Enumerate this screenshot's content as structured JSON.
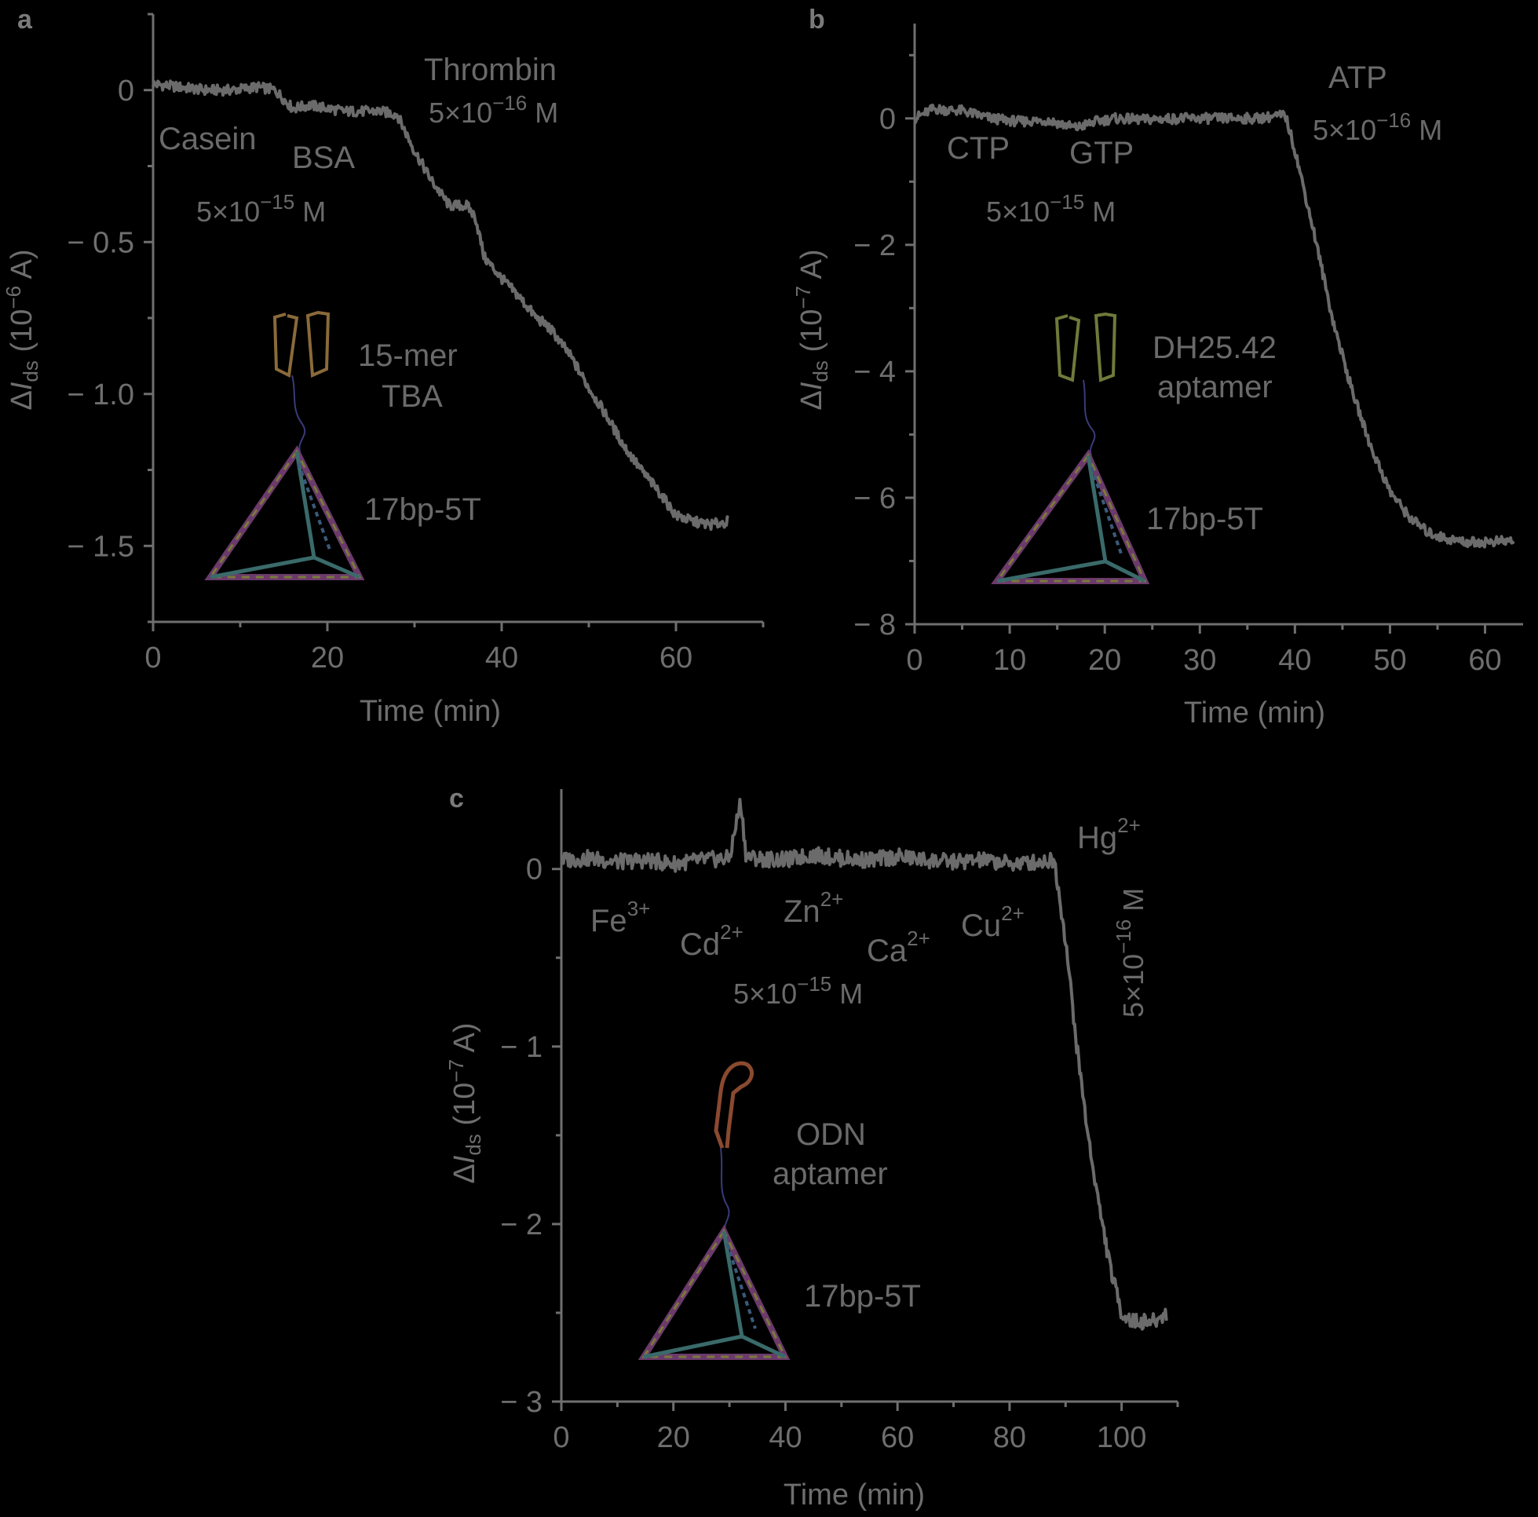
{
  "chart_data": [
    {
      "panel": "a",
      "type": "line",
      "xlabel": "Time (min)",
      "ylabel": "ΔIds (10−6 A)",
      "ylabel_parts": {
        "delta": "Δ",
        "italic": "I",
        "sub": "ds",
        "unit_pre": " (10",
        "unit_sup": "−6",
        "unit_post": " A)"
      },
      "xlim": [
        0,
        70
      ],
      "ylim": [
        -1.75,
        0.25
      ],
      "xticks": [
        0,
        20,
        40,
        60
      ],
      "xtick_labels": [
        "0",
        "20",
        "40",
        "60"
      ],
      "yticks": [
        0,
        -0.5,
        -1.0,
        -1.5
      ],
      "ytick_labels": [
        "0",
        "− 0.5",
        "− 1.0",
        "− 1.5"
      ],
      "series": [
        {
          "x": [
            0,
            3,
            6,
            9,
            12,
            14,
            16,
            18,
            20,
            22,
            24,
            26,
            28,
            30,
            32,
            34,
            36,
            37,
            38,
            40,
            42,
            44,
            45,
            46,
            48,
            50,
            52,
            54,
            56,
            58,
            60,
            62,
            64,
            66
          ],
          "y": [
            0.02,
            0.01,
            0.0,
            0.0,
            0.01,
            0.0,
            -0.06,
            -0.05,
            -0.06,
            -0.07,
            -0.07,
            -0.07,
            -0.08,
            -0.2,
            -0.3,
            -0.38,
            -0.38,
            -0.42,
            -0.55,
            -0.62,
            -0.68,
            -0.75,
            -0.77,
            -0.8,
            -0.88,
            -0.98,
            -1.07,
            -1.17,
            -1.25,
            -1.32,
            -1.4,
            -1.42,
            -1.43,
            -1.42
          ]
        }
      ],
      "annotations": [
        {
          "text": "Casein"
        },
        {
          "text": "BSA"
        },
        {
          "text": "Thrombin"
        },
        {
          "text": "5×10−16 M",
          "base": "5×10",
          "sup": "−16",
          "tail": " M"
        },
        {
          "text": "5×10−15 M",
          "base": "5×10",
          "sup": "−15",
          "tail": " M"
        },
        {
          "text": "15-mer"
        },
        {
          "text": "TBA"
        },
        {
          "text": "17bp-5T"
        }
      ]
    },
    {
      "panel": "b",
      "type": "line",
      "xlabel": "Time (min)",
      "ylabel": "ΔIds (10−7 A)",
      "ylabel_parts": {
        "delta": "Δ",
        "italic": "I",
        "sub": "ds",
        "unit_pre": " (10",
        "unit_sup": "−7",
        "unit_post": " A)"
      },
      "xlim": [
        0,
        64
      ],
      "ylim": [
        -8,
        1.5
      ],
      "xticks": [
        0,
        10,
        20,
        30,
        40,
        50,
        60
      ],
      "xtick_labels": [
        "0",
        "10",
        "20",
        "30",
        "40",
        "50",
        "60"
      ],
      "yticks": [
        0,
        -2,
        -4,
        -6,
        -8
      ],
      "ytick_labels": [
        "0",
        "− 2",
        "− 4",
        "− 6",
        "− 8"
      ],
      "series": [
        {
          "x": [
            0,
            2,
            5,
            8,
            11,
            14,
            17,
            19,
            21,
            24,
            28,
            32,
            36,
            39,
            40,
            42,
            44,
            46,
            48,
            50,
            52,
            54,
            56,
            58,
            60,
            63
          ],
          "y": [
            0.0,
            0.15,
            0.12,
            0.0,
            -0.05,
            -0.03,
            -0.15,
            -0.05,
            0.0,
            -0.02,
            0.0,
            0.0,
            0.0,
            0.05,
            -0.5,
            -1.8,
            -3.2,
            -4.3,
            -5.2,
            -5.9,
            -6.3,
            -6.55,
            -6.65,
            -6.7,
            -6.7,
            -6.68
          ]
        }
      ],
      "annotations": [
        {
          "text": "CTP"
        },
        {
          "text": "GTP"
        },
        {
          "text": "ATP"
        },
        {
          "text": "5×10−16 M",
          "base": "5×10",
          "sup": "−16",
          "tail": " M"
        },
        {
          "text": "5×10−15 M",
          "base": "5×10",
          "sup": "−15",
          "tail": " M"
        },
        {
          "text": "DH25.42"
        },
        {
          "text": "aptamer"
        },
        {
          "text": "17bp-5T"
        }
      ]
    },
    {
      "panel": "c",
      "type": "line",
      "xlabel": "Time (min)",
      "ylabel": "ΔIds (10−7 A)",
      "ylabel_parts": {
        "delta": "Δ",
        "italic": "I",
        "sub": "ds",
        "unit_pre": " (10",
        "unit_sup": "−7",
        "unit_post": " A)"
      },
      "xlim": [
        0,
        110
      ],
      "ylim": [
        -3,
        0.45
      ],
      "xticks": [
        0,
        20,
        40,
        60,
        80,
        100
      ],
      "xtick_labels": [
        "0",
        "20",
        "40",
        "60",
        "80",
        "100"
      ],
      "yticks": [
        0,
        -1,
        -2,
        -3
      ],
      "ytick_labels": [
        "0",
        "− 1",
        "− 2",
        "− 3"
      ],
      "series": [
        {
          "x": [
            0,
            5,
            10,
            15,
            20,
            25,
            30,
            32,
            33,
            35,
            40,
            45,
            50,
            55,
            60,
            65,
            70,
            75,
            80,
            85,
            88,
            90,
            92,
            94,
            96,
            98,
            100,
            102,
            104,
            106,
            108
          ],
          "y": [
            0.05,
            0.06,
            0.04,
            0.05,
            0.03,
            0.05,
            0.06,
            0.38,
            0.07,
            0.06,
            0.05,
            0.08,
            0.06,
            0.05,
            0.07,
            0.05,
            0.04,
            0.05,
            0.03,
            0.04,
            0.05,
            -0.4,
            -1.0,
            -1.5,
            -1.9,
            -2.25,
            -2.5,
            -2.55,
            -2.55,
            -2.55,
            -2.5
          ]
        }
      ],
      "annotations": [
        {
          "ion": "Fe",
          "charge": "3+"
        },
        {
          "ion": "Cd",
          "charge": "2+"
        },
        {
          "ion": "Zn",
          "charge": "2+"
        },
        {
          "ion": "Ca",
          "charge": "2+"
        },
        {
          "ion": "Cu",
          "charge": "2+"
        },
        {
          "ion": "Hg",
          "charge": "2+"
        },
        {
          "text": "5×10−15 M",
          "base": "5×10",
          "sup": "−15",
          "tail": " M"
        },
        {
          "text": "5×10−16 M",
          "base": "5×10",
          "sup": "−16",
          "tail": " M"
        },
        {
          "text": "ODN"
        },
        {
          "text": "aptamer"
        },
        {
          "text": "17bp-5T"
        }
      ]
    }
  ],
  "colors": {
    "background": "#000000",
    "axis": "#6f6f6f",
    "trace": "#6b6b6b",
    "tbaLoop": "#8a6a3a",
    "dhLoop": "#6f7a3a",
    "odnLoop": "#8a4a30"
  }
}
